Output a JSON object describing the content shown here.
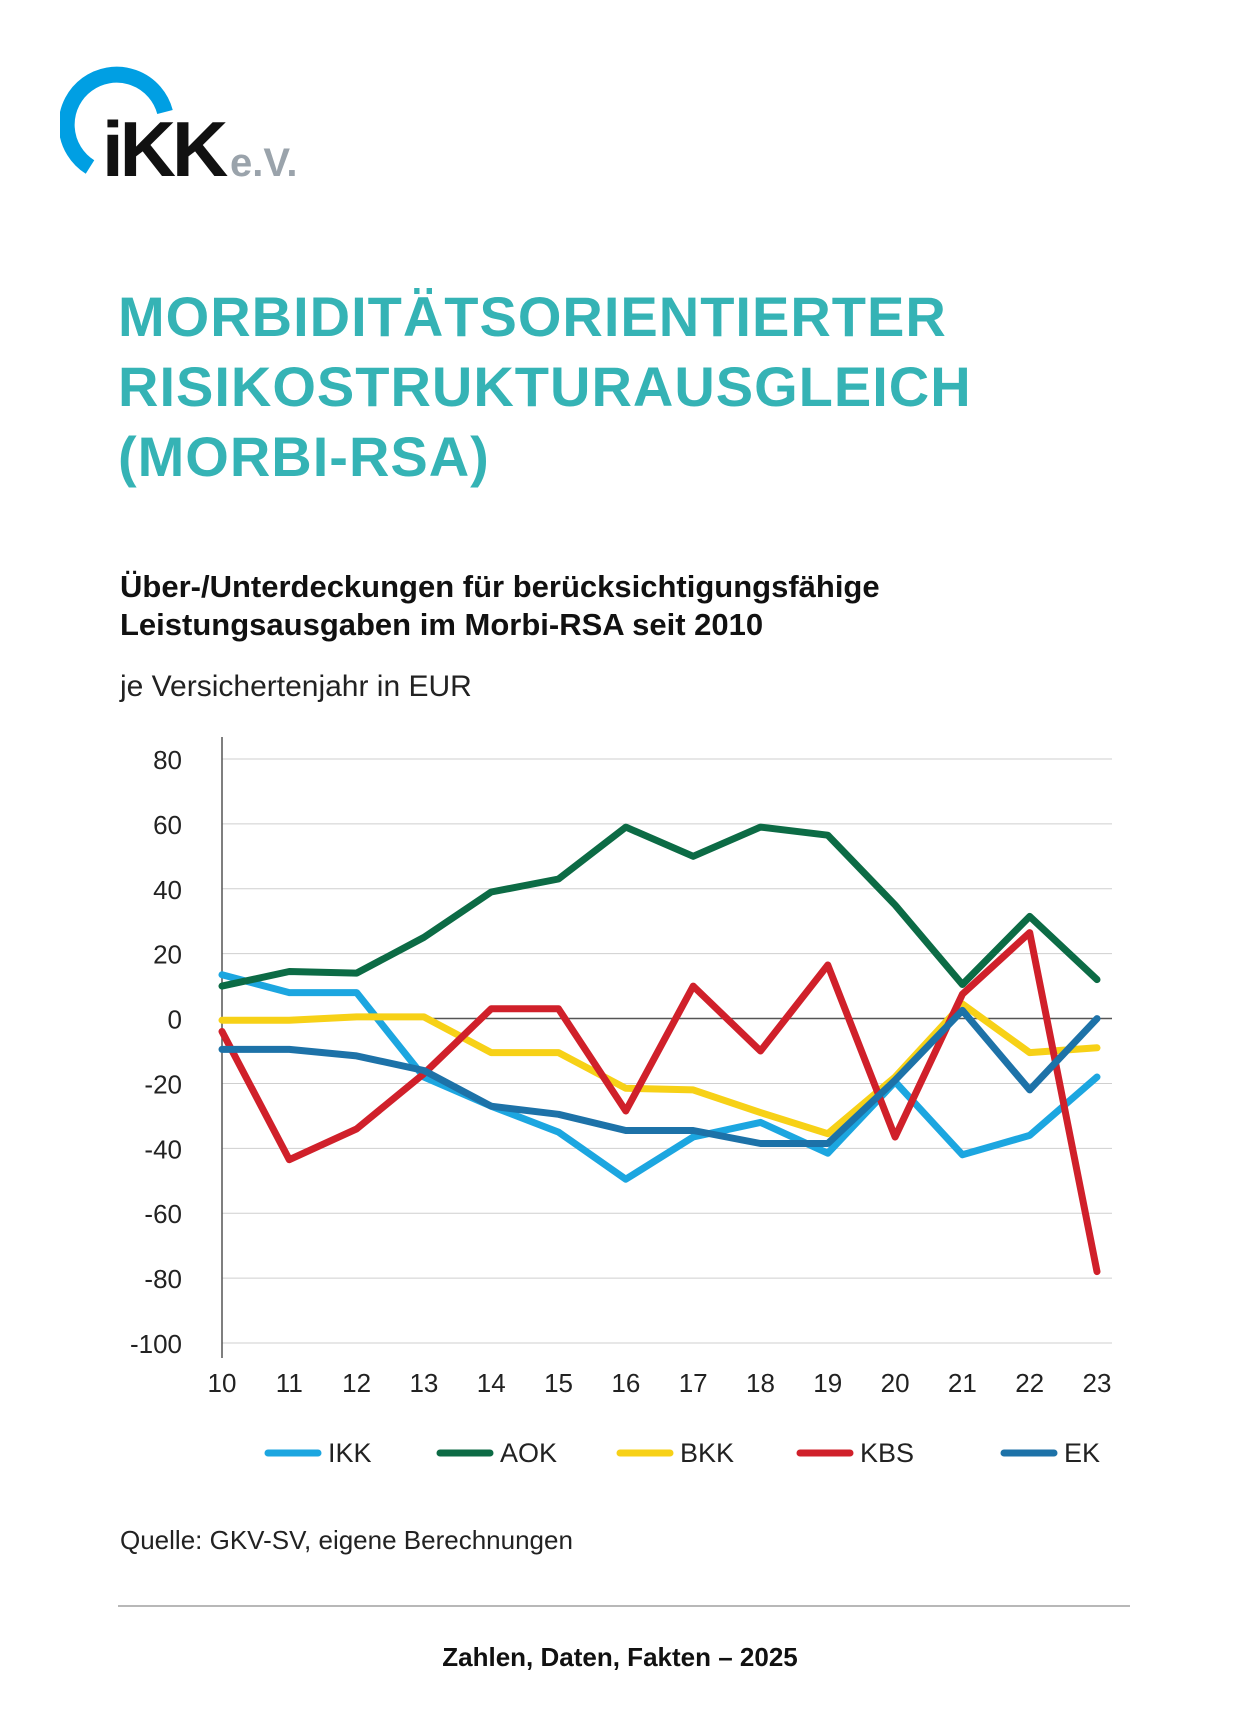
{
  "logo": {
    "text": "iKK",
    "suffix": "e.V.",
    "ring_color": "#009fe3"
  },
  "title_lines": [
    "MORBIDITÄTSORIENTIERTER",
    "RISIKOSTRUKTURAUSGLEICH",
    "(MORBI-RSA)"
  ],
  "subtitle_lines": [
    "Über-/Unterdeckungen für berücksichtigungsfähige",
    "Leistungsausgaben im Morbi-RSA seit 2010"
  ],
  "unit_label": "je Versichertenjahr in EUR",
  "source": "Quelle: GKV-SV, eigene Berechnungen",
  "footer": "Zahlen, Daten, Fakten – 2025",
  "colors": {
    "title": "#35b3b5",
    "grid": "#cfcfcf",
    "axis": "#555555"
  },
  "chart_data": {
    "type": "line",
    "categories": [
      "10",
      "11",
      "12",
      "13",
      "14",
      "15",
      "16",
      "17",
      "18",
      "19",
      "20",
      "21",
      "22",
      "23"
    ],
    "ylim": [
      -100,
      80
    ],
    "yticks": [
      80,
      60,
      40,
      20,
      0,
      -20,
      -40,
      -60,
      -80,
      -100
    ],
    "grid": true,
    "legend_position": "bottom",
    "series": [
      {
        "name": "IKK",
        "color": "#1ca6e0",
        "values": [
          13.5,
          8,
          8,
          -18,
          -27,
          -35,
          -49.5,
          -36.5,
          -32,
          -41.5,
          -19.5,
          -42,
          -36,
          -18
        ]
      },
      {
        "name": "AOK",
        "color": "#0c6b45",
        "values": [
          10,
          14.5,
          14,
          25,
          39,
          43,
          59,
          50,
          59,
          56.5,
          35,
          10.5,
          31.5,
          12
        ]
      },
      {
        "name": "BKK",
        "color": "#f7d117",
        "values": [
          -0.5,
          -0.5,
          0.5,
          0.5,
          -10.5,
          -10.5,
          -21.5,
          -22,
          -29,
          -35.5,
          -18,
          4.5,
          -10.5,
          -9
        ]
      },
      {
        "name": "KBS",
        "color": "#d0202a",
        "values": [
          -4,
          -43.5,
          -34,
          -17,
          3,
          3,
          -28.5,
          10,
          -10,
          16.5,
          -36.5,
          7.5,
          26.5,
          -78
        ]
      },
      {
        "name": "EK",
        "color": "#1d72a8",
        "values": [
          -9.5,
          -9.5,
          -11.5,
          -16,
          -27,
          -29.5,
          -34.5,
          -34.5,
          -38.5,
          -38.5,
          -19,
          2.5,
          -22,
          0
        ]
      }
    ]
  }
}
